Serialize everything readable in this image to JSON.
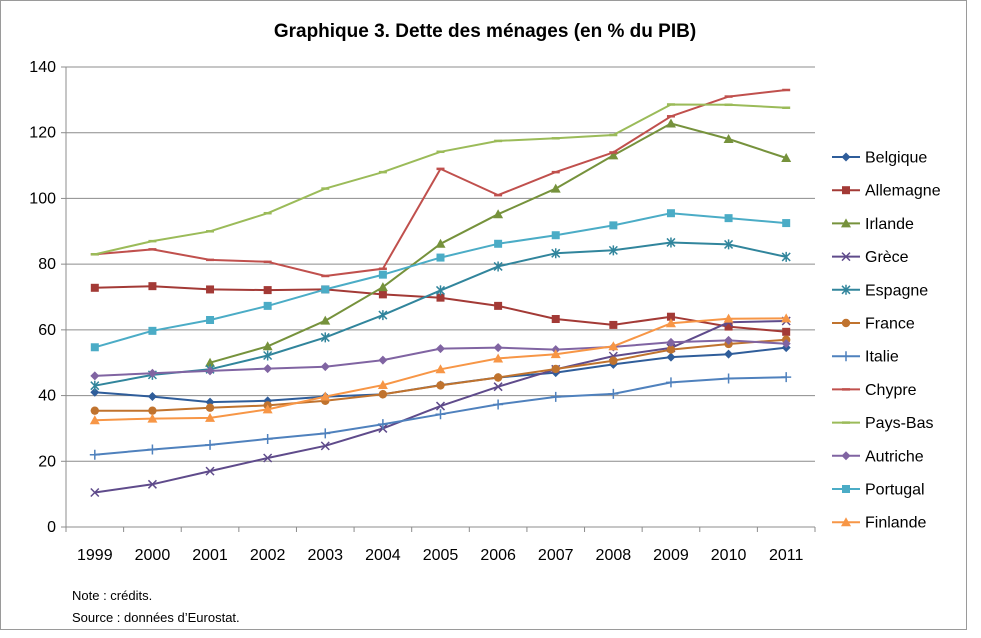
{
  "chart_data": {
    "type": "line",
    "title": "Graphique 3. Dette des ménages (en % du PIB)",
    "xlabel": "",
    "ylabel": "",
    "ylim": [
      0,
      140
    ],
    "yticks": [
      0,
      20,
      40,
      60,
      80,
      100,
      120,
      140
    ],
    "grid": "horizontal",
    "legend_position": "right",
    "categories": [
      "1999",
      "2000",
      "2001",
      "2002",
      "2003",
      "2004",
      "2005",
      "2006",
      "2007",
      "2008",
      "2009",
      "2010",
      "2011"
    ],
    "series": [
      {
        "name": "Belgique",
        "color": "#2f5d9a",
        "marker": "diamond",
        "values": [
          41,
          39.7,
          38,
          38.4,
          39.7,
          40.4,
          43.2,
          45.5,
          47,
          49.5,
          51.7,
          52.6,
          54.6
        ]
      },
      {
        "name": "Allemagne",
        "color": "#a33a36",
        "marker": "square",
        "values": [
          72.8,
          73.3,
          72.3,
          72.1,
          72.3,
          70.8,
          69.8,
          67.3,
          63.3,
          61.5,
          64,
          61,
          59.4
        ]
      },
      {
        "name": "Irlande",
        "color": "#76923c",
        "marker": "triangle",
        "values": [
          null,
          null,
          50,
          55,
          62.8,
          73,
          86.2,
          95.2,
          103,
          113.1,
          122.8,
          118.1,
          112.3
        ]
      },
      {
        "name": "Grèce",
        "color": "#5f4b8b",
        "marker": "x",
        "values": [
          10.5,
          13,
          17,
          21,
          24.7,
          30,
          36.8,
          42.7,
          48,
          52,
          54.5,
          62.3,
          62.7
        ]
      },
      {
        "name": "Espagne",
        "color": "#31859c",
        "marker": "star",
        "values": [
          43,
          46.3,
          48,
          52.2,
          57.7,
          64.5,
          72,
          79.3,
          83.3,
          84.2,
          86.6,
          86,
          82.2
        ]
      },
      {
        "name": "France",
        "color": "#c0732e",
        "marker": "circle",
        "values": [
          35.4,
          35.4,
          36.3,
          37,
          38.4,
          40.4,
          43.1,
          45.5,
          48.1,
          50.6,
          54,
          55.7,
          57
        ]
      },
      {
        "name": "Italie",
        "color": "#4f81bd",
        "marker": "plus",
        "values": [
          22,
          23.6,
          25,
          26.8,
          28.5,
          31.3,
          34.3,
          37.3,
          39.6,
          40.5,
          44,
          45.2,
          45.6
        ]
      },
      {
        "name": "Chypre",
        "color": "#c0504d",
        "marker": "dash",
        "values": [
          83,
          84.5,
          81.3,
          80.7,
          76.4,
          78.6,
          109,
          101,
          108,
          114,
          125,
          131,
          133
        ]
      },
      {
        "name": "Pays-Bas",
        "color": "#9bbb59",
        "marker": "dash",
        "values": [
          83,
          87,
          90,
          95.5,
          103,
          108,
          114.2,
          117.5,
          118.3,
          119.3,
          128.6,
          128.5,
          127.6
        ]
      },
      {
        "name": "Autriche",
        "color": "#8064a2",
        "marker": "diamond",
        "values": [
          46,
          46.8,
          47.5,
          48.2,
          48.8,
          50.8,
          54.3,
          54.6,
          54,
          54.8,
          56.2,
          56.8,
          55.8
        ]
      },
      {
        "name": "Portugal",
        "color": "#4bacc6",
        "marker": "square",
        "values": [
          54.7,
          59.7,
          63,
          67.3,
          72.3,
          76.8,
          82,
          86.2,
          88.8,
          91.8,
          95.5,
          94,
          92.5
        ]
      },
      {
        "name": "Finlande",
        "color": "#f79646",
        "marker": "triangle",
        "values": [
          32.5,
          33,
          33.2,
          35.8,
          39.7,
          43.2,
          48,
          51.3,
          52.6,
          55,
          62,
          63.4,
          63.5
        ]
      }
    ],
    "notes": [
      "Note : crédits.",
      "Source : données d’Eurostat."
    ]
  }
}
